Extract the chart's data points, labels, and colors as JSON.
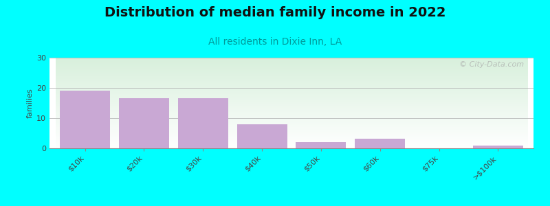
{
  "title": "Distribution of median family income in 2022",
  "subtitle": "All residents in Dixie Inn, LA",
  "categories": [
    "$10k",
    "$20k",
    "$30k",
    "$40k",
    "$50k",
    "$60k",
    "$75k",
    ">$100k"
  ],
  "values": [
    19,
    16.5,
    16.5,
    8,
    2,
    3.2,
    0,
    1
  ],
  "bar_color": "#c9a8d4",
  "background_color": "#00ffff",
  "plot_bg_colors": [
    "#ffffff",
    "#d8f0dc"
  ],
  "ylabel": "families",
  "ylim": [
    0,
    30
  ],
  "yticks": [
    0,
    10,
    20,
    30
  ],
  "watermark": "© City-Data.com",
  "title_fontsize": 14,
  "subtitle_fontsize": 10,
  "subtitle_color": "#009999",
  "tick_label_fontsize": 8,
  "ylabel_fontsize": 8
}
